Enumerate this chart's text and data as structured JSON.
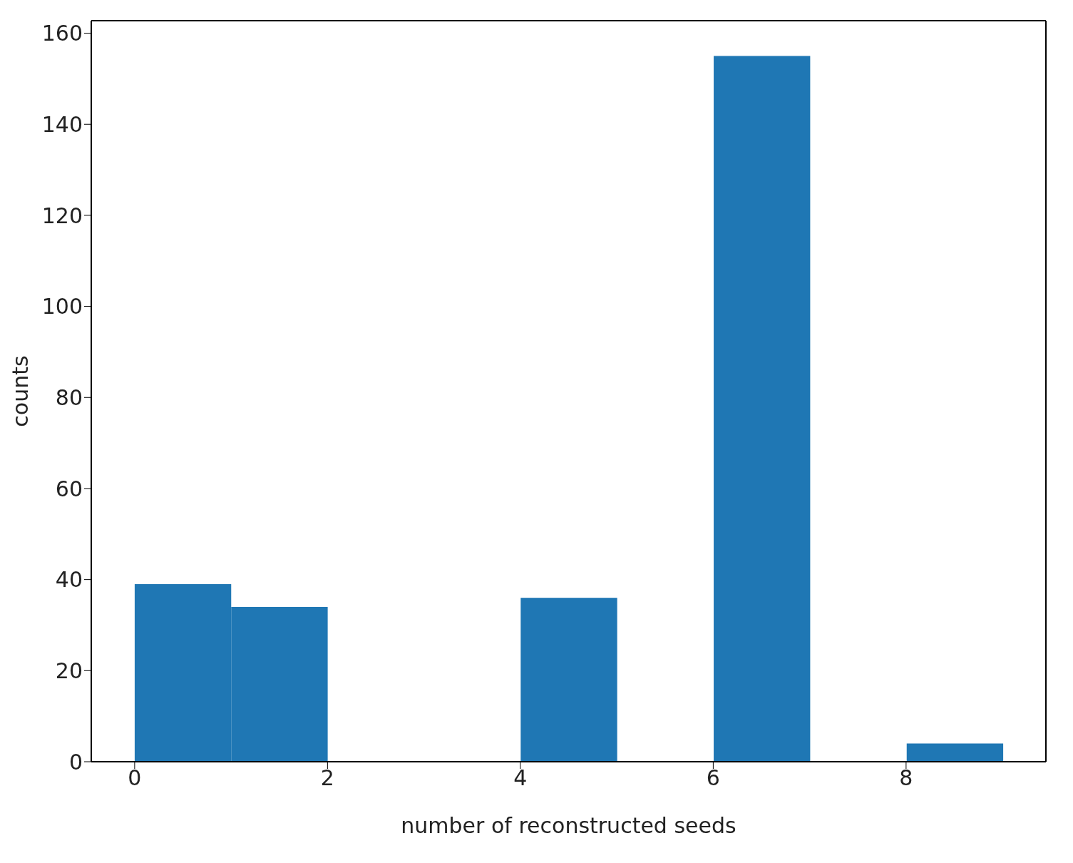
{
  "chart_data": {
    "type": "histogram",
    "xlabel": "number of reconstructed seeds",
    "ylabel": "counts",
    "bins": [
      0,
      1,
      2,
      3,
      4,
      5,
      6,
      7,
      8,
      9
    ],
    "values": [
      39,
      34,
      0,
      0,
      36,
      0,
      155,
      0,
      4
    ],
    "color": "#1f77b4",
    "xlim": [
      -0.45,
      9.45
    ],
    "xticks": [
      0,
      2,
      4,
      6,
      8
    ],
    "ylim": [
      0,
      162.75
    ],
    "yticks": [
      0,
      20,
      40,
      60,
      80,
      100,
      120,
      140,
      160
    ],
    "grid": false
  }
}
